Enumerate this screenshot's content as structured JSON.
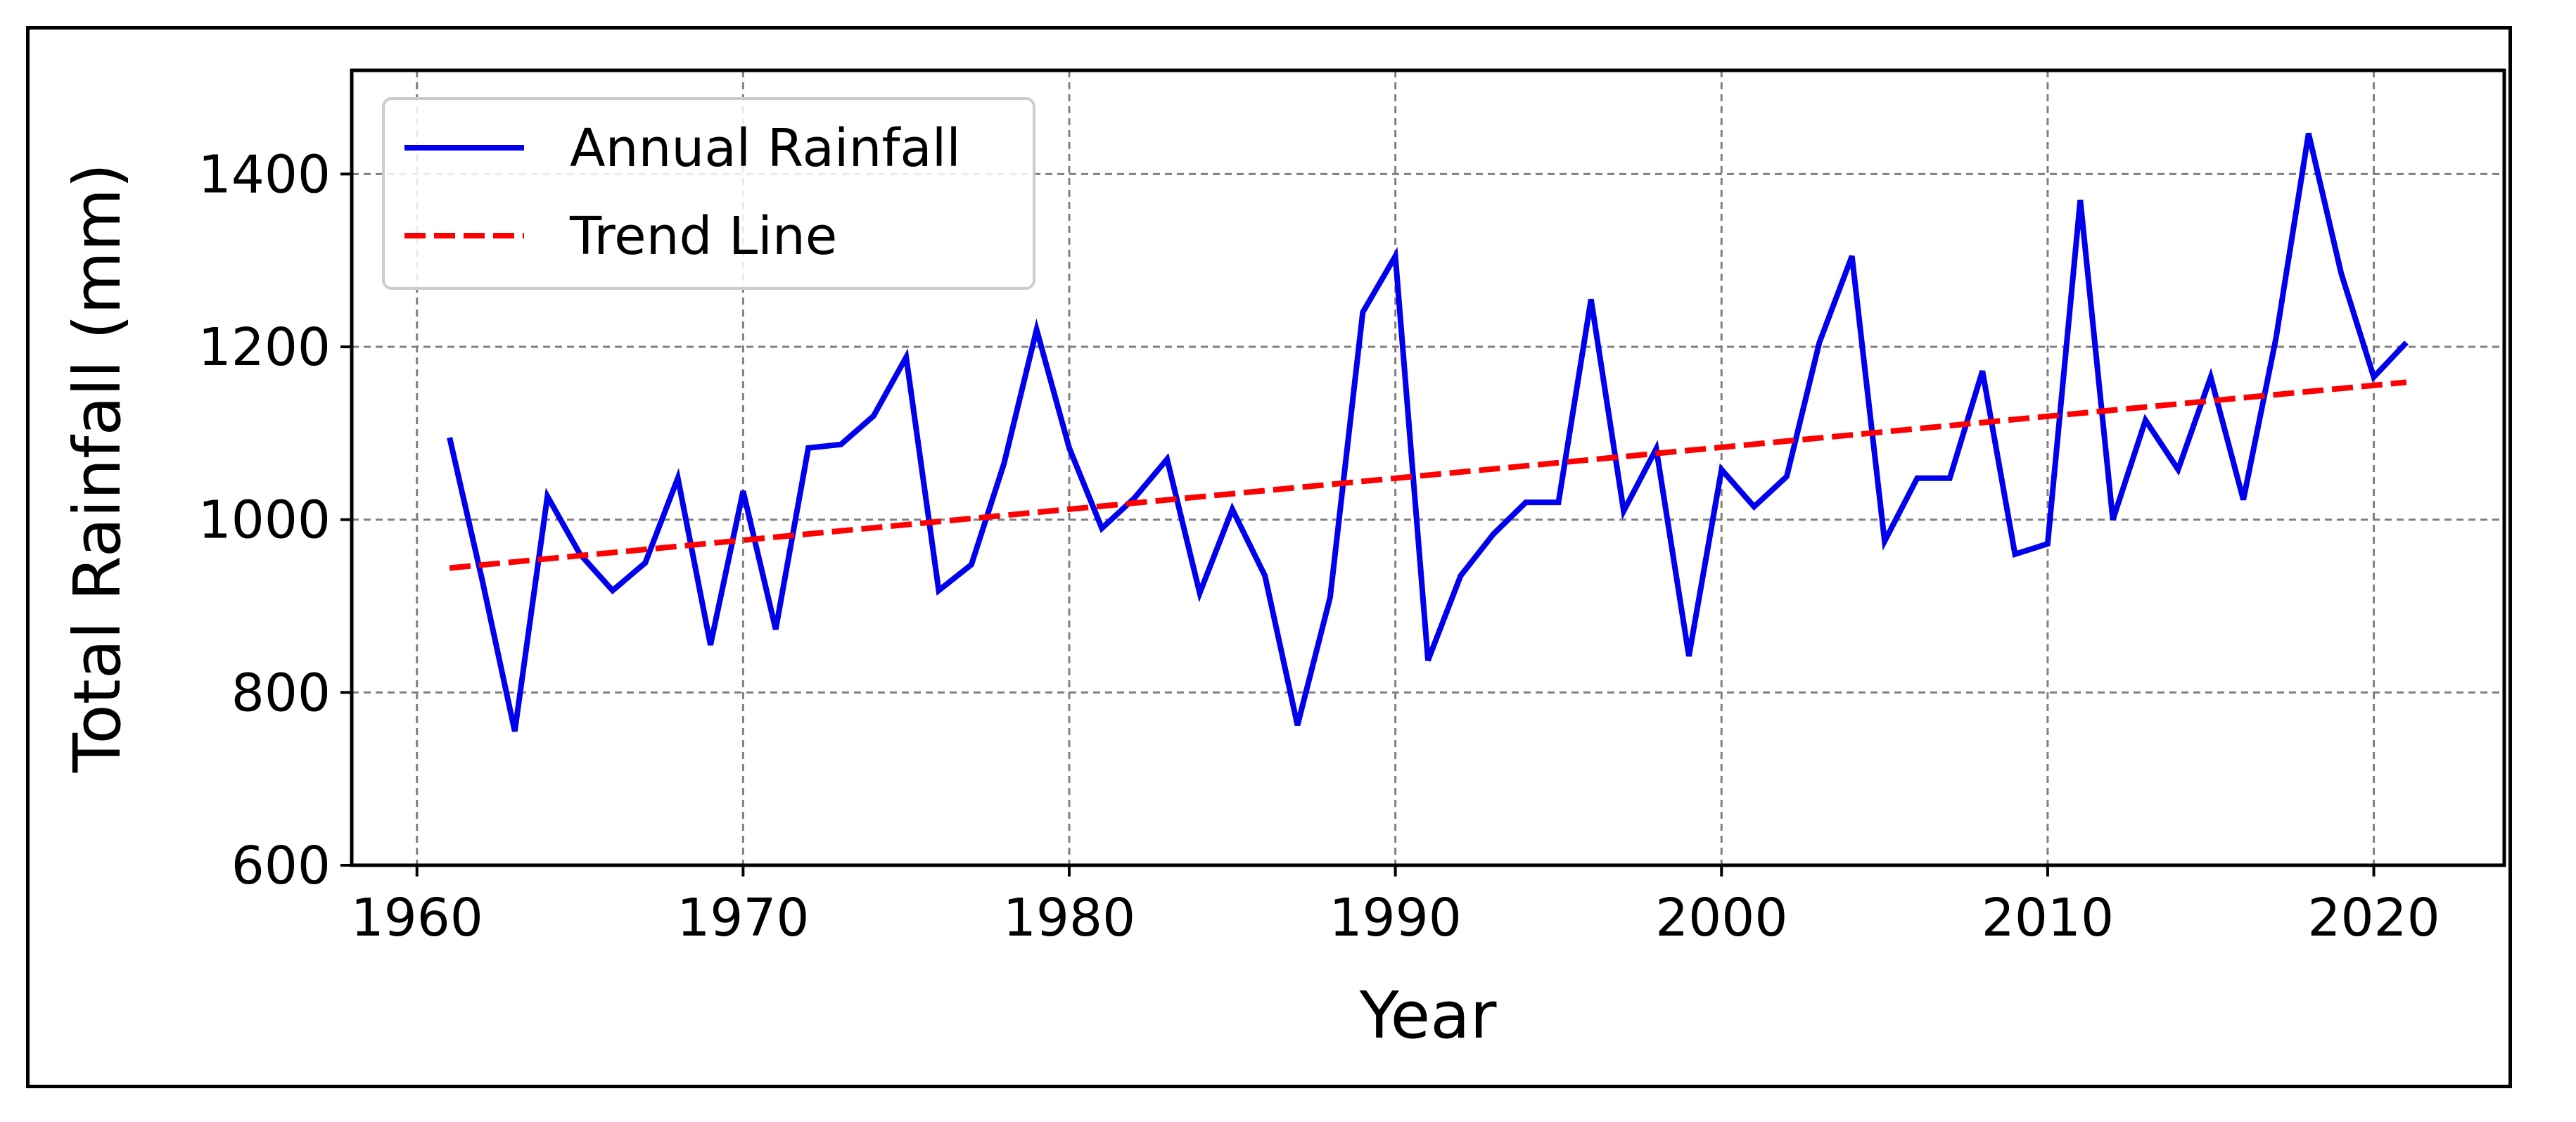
{
  "chart_data": {
    "type": "line",
    "title": "",
    "xlabel": "Year",
    "ylabel": "Total Rainfall (mm)",
    "xlim": [
      1958,
      2024
    ],
    "ylim": [
      600,
      1520
    ],
    "xticks": [
      1960,
      1970,
      1980,
      1990,
      2000,
      2010,
      2020
    ],
    "yticks": [
      600,
      800,
      1000,
      1200,
      1400
    ],
    "grid": true,
    "legend_position": "top-left",
    "series": [
      {
        "name": "Annual Rainfall",
        "color": "#0000ee",
        "style": "solid",
        "x": [
          1961,
          1962,
          1963,
          1964,
          1965,
          1966,
          1967,
          1968,
          1969,
          1970,
          1971,
          1972,
          1973,
          1974,
          1975,
          1976,
          1977,
          1978,
          1979,
          1980,
          1981,
          1982,
          1983,
          1984,
          1985,
          1986,
          1987,
          1988,
          1989,
          1990,
          1991,
          1992,
          1993,
          1994,
          1995,
          1996,
          1997,
          1998,
          1999,
          2000,
          2001,
          2002,
          2003,
          2004,
          2005,
          2006,
          2007,
          2008,
          2009,
          2010,
          2011,
          2012,
          2013,
          2014,
          2015,
          2016,
          2017,
          2018,
          2019,
          2020,
          2021
        ],
        "values": [
          1095,
          930,
          755,
          1027,
          960,
          918,
          950,
          1048,
          855,
          1033,
          873,
          1083,
          1087,
          1120,
          1188,
          918,
          948,
          1065,
          1220,
          1083,
          990,
          1025,
          1070,
          915,
          1012,
          935,
          762,
          910,
          1240,
          1305,
          837,
          935,
          983,
          1020,
          1020,
          1255,
          1010,
          1082,
          842,
          1058,
          1015,
          1050,
          1205,
          1305,
          975,
          1048,
          1048,
          1172,
          960,
          972,
          1370,
          1000,
          1115,
          1058,
          1165,
          1023,
          1210,
          1447,
          1285,
          1165,
          1205
        ]
      },
      {
        "name": "Trend Line",
        "color": "#ff0000",
        "style": "dashed",
        "x": [
          1961,
          2021
        ],
        "values": [
          944,
          1159
        ]
      }
    ]
  }
}
